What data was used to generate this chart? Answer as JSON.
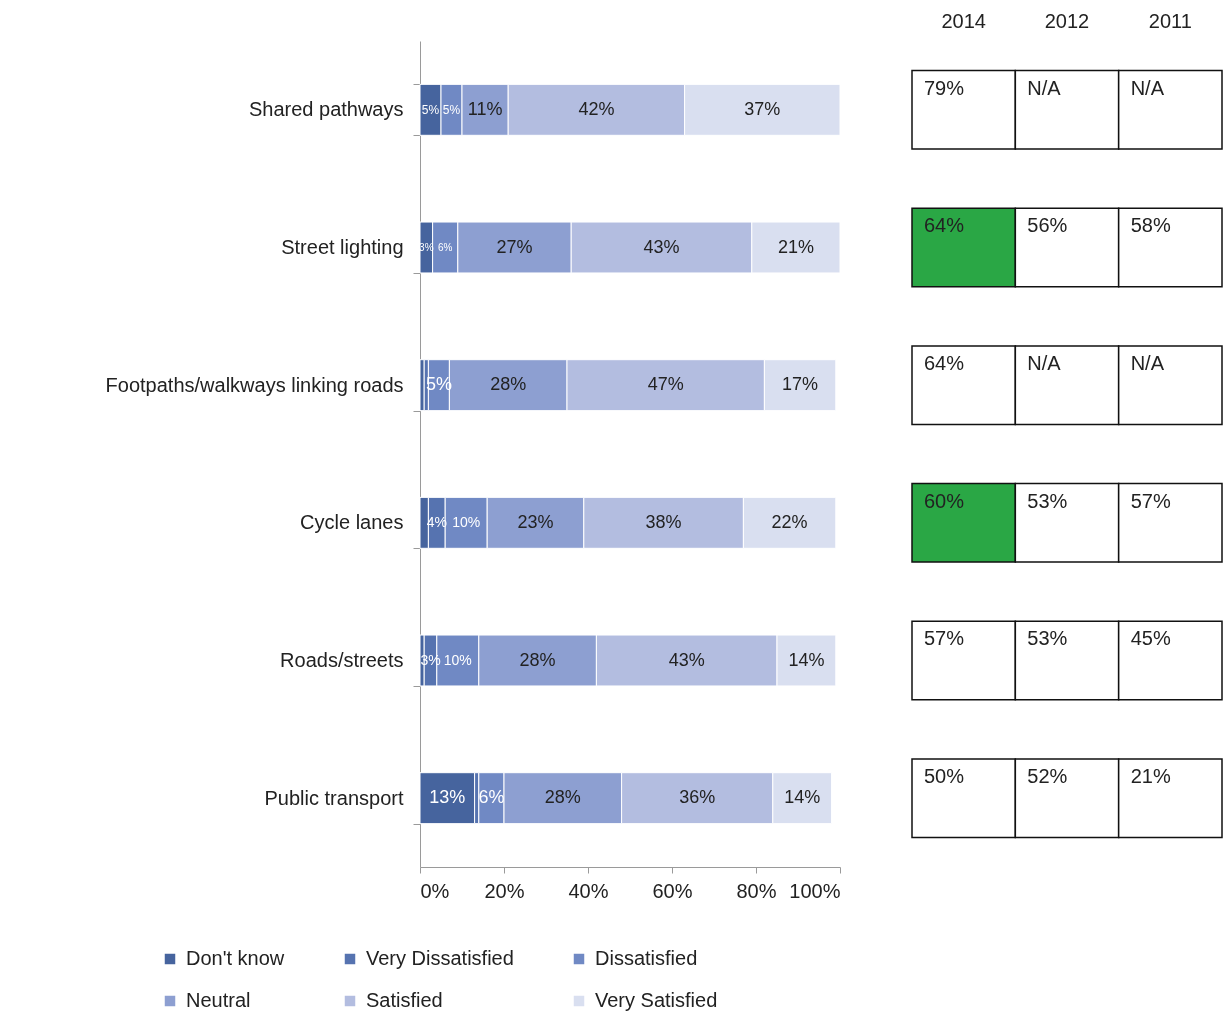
{
  "chart_data": [
    {
      "type": "bar",
      "orientation": "horizontal",
      "stacked": true,
      "categories": [
        "Shared pathways",
        "Street lighting",
        "Footpaths/walkways linking roads",
        "Cycle lanes",
        "Roads/streets",
        "Public transport"
      ],
      "series": [
        {
          "name": "Don't know",
          "color": "#46649e",
          "values": [
            5,
            3,
            1,
            2,
            1,
            13
          ],
          "value_labels": [
            "5%",
            "3%",
            null,
            null,
            null,
            "13%"
          ]
        },
        {
          "name": "Very Dissatisfied",
          "color": "#5673b0",
          "values": [
            null,
            null,
            1,
            4,
            3,
            1
          ],
          "value_labels": [
            null,
            null,
            null,
            "4%",
            "3%",
            null
          ]
        },
        {
          "name": "Dissatisfied",
          "color": "#7089c4",
          "values": [
            5,
            6,
            5,
            10,
            10,
            6
          ],
          "value_labels": [
            "5%",
            "6%",
            "5%",
            "10%",
            "10%",
            "6%"
          ]
        },
        {
          "name": "Neutral",
          "color": "#8d9fd1",
          "values": [
            11,
            27,
            28,
            23,
            28,
            28
          ],
          "value_labels": [
            "11%",
            "27%",
            "28%",
            "23%",
            "28%",
            "28%"
          ]
        },
        {
          "name": "Satisfied",
          "color": "#b3bde0",
          "values": [
            42,
            43,
            47,
            38,
            43,
            36
          ],
          "value_labels": [
            "42%",
            "43%",
            "47%",
            "38%",
            "43%",
            "36%"
          ]
        },
        {
          "name": "Very Satisfied",
          "color": "#d9dff0",
          "values": [
            37,
            21,
            17,
            22,
            14,
            14
          ],
          "value_labels": [
            "37%",
            "21%",
            "17%",
            "22%",
            "14%",
            "14%"
          ]
        }
      ],
      "xlim": [
        0,
        100
      ],
      "xticks": [
        {
          "value": 0,
          "label": "0%"
        },
        {
          "value": 20,
          "label": "20%"
        },
        {
          "value": 40,
          "label": "40%"
        },
        {
          "value": 60,
          "label": "60%"
        },
        {
          "value": 80,
          "label": "80%"
        },
        {
          "value": 100,
          "label": "100%"
        }
      ],
      "legend": "bottom"
    },
    {
      "type": "heatmap",
      "categories": [
        "2014",
        "2012",
        "2011"
      ],
      "y_categories": [
        null,
        null,
        null,
        null,
        null,
        null
      ],
      "cells": [
        [
          79,
          null,
          null
        ],
        [
          64,
          56,
          58
        ],
        [
          64,
          null,
          null
        ],
        [
          60,
          53,
          57
        ],
        [
          57,
          53,
          45
        ],
        [
          50,
          52,
          21
        ]
      ],
      "cell_labels": [
        [
          "79%",
          "N/A",
          "N/A"
        ],
        [
          "64%",
          "56%",
          "58%"
        ],
        [
          "64%",
          "N/A",
          "N/A"
        ],
        [
          "60%",
          "53%",
          "57%"
        ],
        [
          "57%",
          "53%",
          "45%"
        ],
        [
          "50%",
          "52%",
          "21%"
        ]
      ],
      "colors": [
        [
          "#ffffff",
          "#ffffff",
          "#ffffff"
        ],
        [
          "#2aa745",
          "#ffffff",
          "#ffffff"
        ],
        [
          "#ffffff",
          "#ffffff",
          "#ffffff"
        ],
        [
          "#2aa745",
          "#ffffff",
          "#ffffff"
        ],
        [
          "#ffffff",
          "#ffffff",
          "#ffffff"
        ],
        [
          "#ffffff",
          "#ffffff",
          "#ffffff"
        ]
      ]
    }
  ]
}
